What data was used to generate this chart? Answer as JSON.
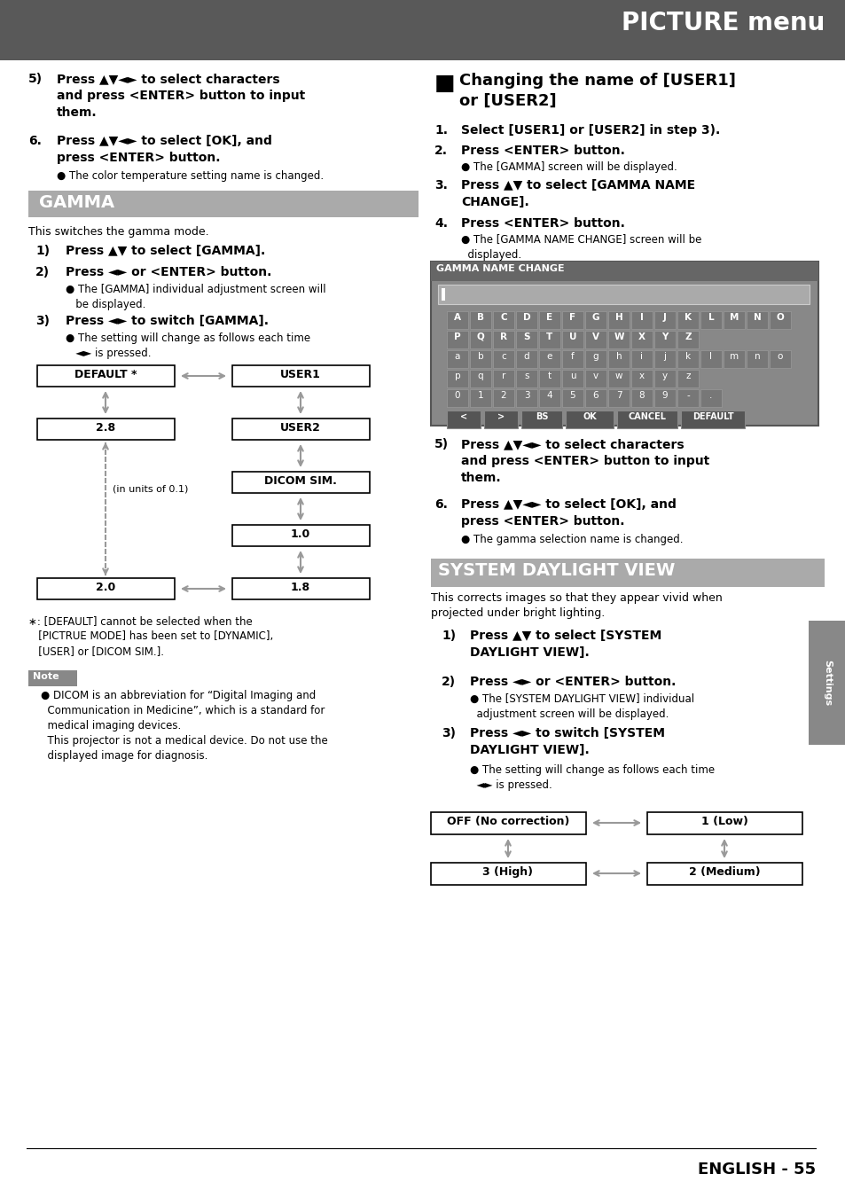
{
  "page_bg": "#ffffff",
  "header_bg": "#595959",
  "header_text": "PICTURE menu",
  "header_text_color": "#ffffff",
  "gamma_header_bg": "#aaaaaa",
  "gamma_header_text": "GAMMA",
  "system_header_bg": "#aaaaaa",
  "system_header_text": "SYSTEM DAYLIGHT VIEW",
  "note_bg": "#888888",
  "note_text": "Note",
  "arrow_color": "#999999",
  "gnc_bg": "#888888",
  "gnc_title_bg": "#666666",
  "gnc_input_bg": "#aaaaaa",
  "gnc_btn_bg": "#666666",
  "gnc_key_bg": "#777777",
  "settings_tab_bg": "#888888"
}
